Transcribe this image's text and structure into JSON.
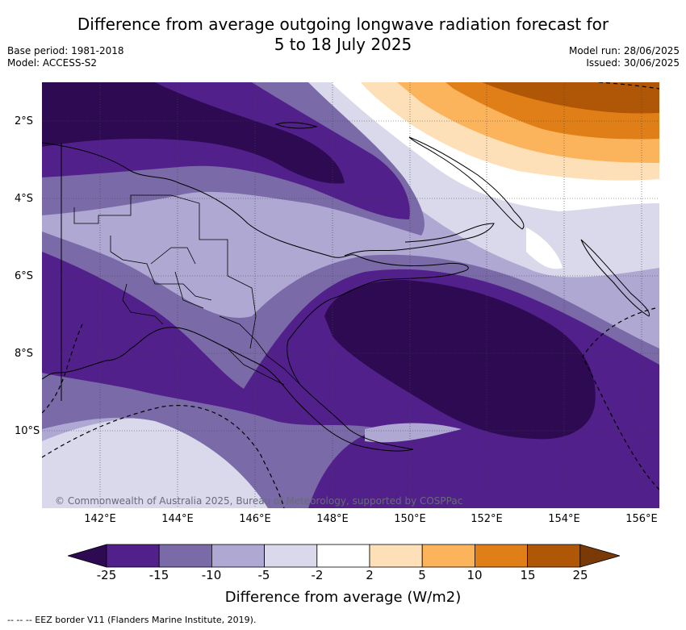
{
  "title_line1": "Difference from average outgoing longwave radiation forecast for",
  "title_line2": "5 to 18 July 2025",
  "base_period": "Base period: 1981-2018",
  "model": "Model: ACCESS-S2",
  "model_run": "Model run: 28/06/2025",
  "issued": "Issued: 30/06/2025",
  "copyright": "© Commonwealth of Australia 2025, Bureau of Meteorology, supported by COSPPac",
  "x_ticks": [
    "142°E",
    "144°E",
    "146°E",
    "148°E",
    "150°E",
    "152°E",
    "154°E",
    "156°E"
  ],
  "y_ticks": [
    "2°S",
    "4°S",
    "6°S",
    "8°S",
    "10°S"
  ],
  "colorbar": {
    "title": "Difference from average (W/m2)",
    "labels": [
      "-25",
      "-15",
      "-10",
      "-5",
      "-2",
      "2",
      "5",
      "10",
      "15",
      "25"
    ],
    "colors": [
      "#2d0a52",
      "#52208a",
      "#7a6aa8",
      "#aea8d2",
      "#d9d9eb",
      "#ffffff",
      "#fde0b8",
      "#fbb35c",
      "#e07f17",
      "#b05607",
      "#7a3a08"
    ]
  },
  "footer": "-- -- -- EEZ border V11 (Flanders Marine Institute, 2019)."
}
